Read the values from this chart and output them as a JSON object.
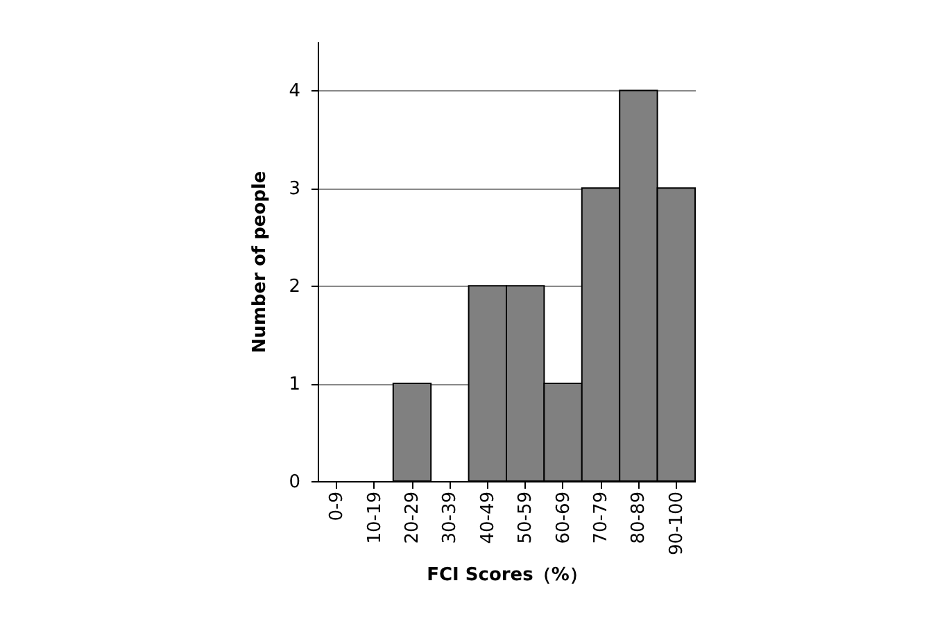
{
  "chart_data": {
    "type": "bar",
    "xlabel": "FCI Scores（%）",
    "ylabel": "Number of people",
    "categories": [
      "0-9",
      "10-19",
      "20-29",
      "30-39",
      "40-49",
      "50-59",
      "60-69",
      "70-79",
      "80-89",
      "90-100"
    ],
    "values": [
      0,
      0,
      1,
      0,
      2,
      2,
      1,
      3,
      4,
      3
    ],
    "color": "#808080",
    "ylim": [
      0,
      4.5
    ],
    "yticks": [
      0,
      1,
      2,
      3,
      4
    ],
    "grid": "y"
  }
}
